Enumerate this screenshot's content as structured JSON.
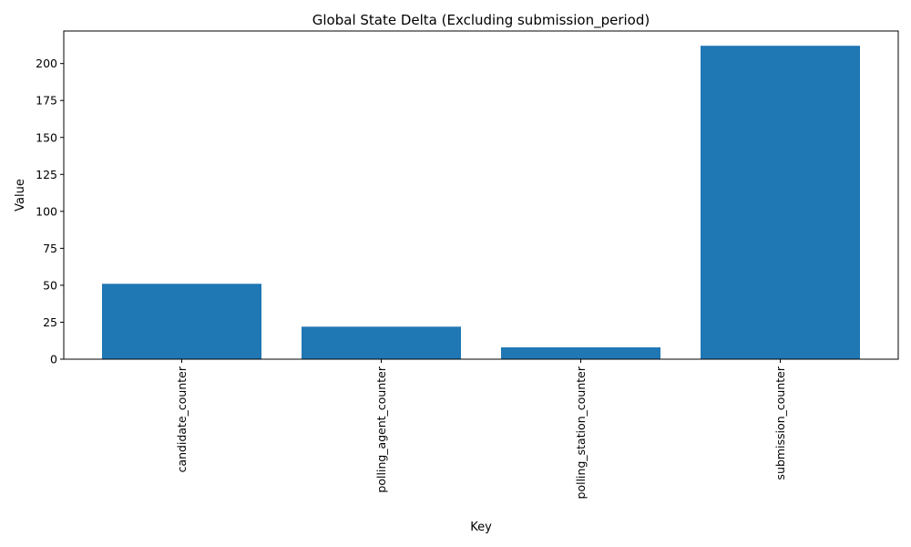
{
  "chart_data": {
    "type": "bar",
    "title": "Global State Delta (Excluding submission_period)",
    "xlabel": "Key",
    "ylabel": "Value",
    "categories": [
      "candidate_counter",
      "polling_agent_counter",
      "polling_station_counter",
      "submission_counter"
    ],
    "values": [
      51,
      22,
      8,
      212
    ],
    "ylim": [
      0,
      222
    ],
    "yticks": [
      0,
      25,
      50,
      75,
      100,
      125,
      150,
      175,
      200
    ],
    "bar_color": "#1f77b4",
    "grid": false,
    "legend": "none"
  }
}
